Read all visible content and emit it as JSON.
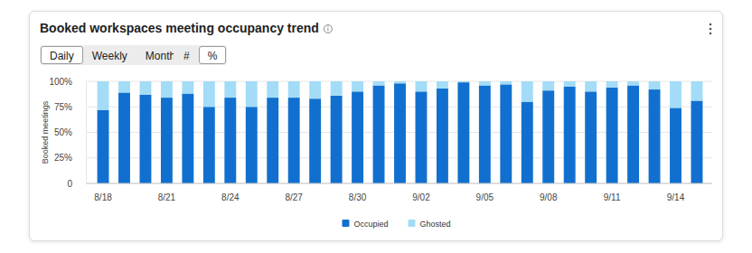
{
  "controls": {
    "period": [
      "Daily",
      "Weekly",
      "Monthly"
    ],
    "unit": [
      "#",
      "%"
    ],
    "selected": [
      "Daily",
      "%"
    ]
  },
  "chart_data": {
    "type": "bar",
    "title": "Booked workspaces meeting occupancy trend",
    "y_label": "Booked meetings",
    "categories": [
      "8/18",
      null,
      null,
      "8/21",
      null,
      null,
      "8/24",
      null,
      null,
      "8/27",
      null,
      null,
      "8/30",
      null,
      null,
      "9/02",
      null,
      null,
      "9/05",
      null,
      null,
      "9/08",
      null,
      null,
      "9/11",
      null,
      null,
      "9/14",
      null
    ],
    "series": [
      {
        "name": "Occupied",
        "color": "#1170cf",
        "values": [
          72,
          89,
          87,
          84,
          88,
          75,
          84,
          75,
          84,
          84,
          83,
          86,
          90,
          96,
          98,
          90,
          93,
          99,
          96,
          97,
          80,
          91,
          95,
          90,
          94,
          96,
          92,
          74,
          81
        ]
      },
      {
        "name": "Ghosted",
        "color": "#a3dcf7",
        "values": [
          28,
          11,
          13,
          16,
          12,
          25,
          16,
          25,
          16,
          16,
          17,
          14,
          10,
          4,
          2,
          10,
          7,
          1,
          4,
          3,
          20,
          9,
          5,
          10,
          6,
          4,
          8,
          26,
          19
        ]
      }
    ],
    "stacked": true,
    "ylim": [
      0,
      100
    ],
    "yticks": [
      0,
      {
        "value": 25,
        "label": "25%"
      },
      {
        "value": 50,
        "label": "50%"
      },
      {
        "value": 75,
        "label": "75%"
      },
      {
        "value": 100,
        "label": "100%"
      }
    ],
    "grid": true,
    "legend": "bottom"
  }
}
